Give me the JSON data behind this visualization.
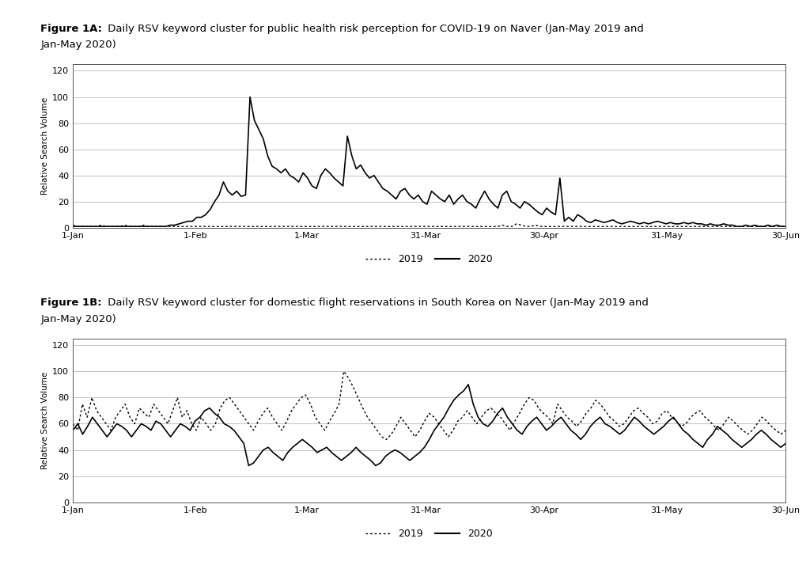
{
  "fig1a_title_bold": "Figure 1A:",
  "fig1a_title_rest": " Daily RSV keyword cluster for public health risk perception for COVID-19 on Naver (Jan-May 2019 and",
  "fig1a_title_line2": "Jan-May 2020)",
  "fig1b_title_bold": "Figure 1B:",
  "fig1b_title_rest": " Daily RSV keyword cluster for domestic flight reservations in South Korea on Naver (Jan-May 2019 and",
  "fig1b_title_line2": "Jan-May 2020)",
  "ylabel": "Relative Search Volume",
  "xtick_labels": [
    "1-Jan",
    "1-Feb",
    "1-Mar",
    "31-Mar",
    "30-Apr",
    "31-May",
    "30-Jun"
  ],
  "xtick_positions": [
    0,
    31,
    59,
    89,
    119,
    150,
    180
  ],
  "total_days": 181,
  "yticks": [
    0,
    20,
    40,
    60,
    80,
    100,
    120
  ],
  "ylim": [
    0,
    125
  ],
  "legend_2019": "2019",
  "legend_2020": "2020",
  "background_color": "#ffffff",
  "line_color": "#000000",
  "grid_color": "#aaaaaa",
  "fig1a_2019": [
    2,
    1,
    1,
    1,
    1,
    1,
    2,
    1,
    1,
    1,
    1,
    2,
    1,
    1,
    1,
    2,
    1,
    1,
    1,
    1,
    1,
    1,
    1,
    1,
    1,
    1,
    1,
    1,
    1,
    1,
    1,
    1,
    1,
    1,
    1,
    1,
    1,
    1,
    1,
    1,
    1,
    1,
    1,
    1,
    1,
    1,
    1,
    1,
    1,
    1,
    1,
    1,
    1,
    1,
    1,
    1,
    1,
    1,
    1,
    1,
    1,
    1,
    1,
    1,
    1,
    1,
    1,
    1,
    1,
    1,
    1,
    1,
    1,
    1,
    1,
    1,
    1,
    1,
    1,
    1,
    1,
    1,
    1,
    1,
    1,
    1,
    1,
    1,
    1,
    1,
    1,
    2,
    1,
    1,
    3,
    2,
    1,
    1,
    2,
    1,
    1,
    1,
    1,
    1,
    1,
    1,
    1,
    1,
    1,
    1,
    1,
    1,
    1,
    1,
    1,
    1,
    1,
    1,
    1,
    1,
    1,
    1,
    1,
    1,
    1,
    1,
    1,
    1,
    1,
    1,
    1,
    1,
    1,
    1,
    1,
    1,
    1,
    1,
    1,
    1,
    1,
    1,
    1,
    1,
    1,
    1,
    1,
    1,
    1,
    1,
    1,
    1
  ],
  "fig1a_2020": [
    1,
    1,
    1,
    1,
    1,
    1,
    1,
    1,
    1,
    1,
    1,
    1,
    1,
    1,
    1,
    1,
    1,
    1,
    1,
    1,
    1,
    1,
    2,
    2,
    3,
    4,
    5,
    5,
    8,
    8,
    10,
    14,
    20,
    25,
    35,
    28,
    25,
    28,
    24,
    25,
    100,
    82,
    75,
    68,
    55,
    47,
    45,
    42,
    45,
    40,
    38,
    35,
    42,
    38,
    32,
    30,
    40,
    45,
    42,
    38,
    35,
    32,
    70,
    55,
    45,
    48,
    42,
    38,
    40,
    35,
    30,
    28,
    25,
    22,
    28,
    30,
    25,
    22,
    25,
    20,
    18,
    28,
    25,
    22,
    20,
    25,
    18,
    22,
    25,
    20,
    18,
    15,
    22,
    28,
    22,
    18,
    15,
    25,
    28,
    20,
    18,
    15,
    20,
    18,
    15,
    12,
    10,
    15,
    12,
    10,
    38,
    5,
    8,
    5,
    10,
    8,
    5,
    4,
    6,
    5,
    4,
    5,
    6,
    4,
    3,
    4,
    5,
    4,
    3,
    4,
    3,
    4,
    5,
    4,
    3,
    4,
    3,
    3,
    4,
    3,
    4,
    3,
    3,
    2,
    3,
    2,
    2,
    3,
    2,
    2,
    1,
    1,
    2,
    1,
    2,
    1,
    1,
    2,
    1,
    2,
    1,
    1
  ],
  "fig1b_2019": [
    60,
    55,
    75,
    65,
    80,
    70,
    65,
    60,
    55,
    65,
    70,
    75,
    65,
    60,
    72,
    68,
    65,
    75,
    70,
    65,
    60,
    70,
    80,
    65,
    70,
    60,
    55,
    65,
    60,
    55,
    60,
    72,
    78,
    80,
    75,
    70,
    65,
    60,
    55,
    62,
    68,
    72,
    65,
    60,
    55,
    62,
    70,
    75,
    80,
    82,
    75,
    65,
    60,
    55,
    62,
    68,
    75,
    100,
    95,
    88,
    80,
    72,
    65,
    60,
    55,
    50,
    48,
    52,
    58,
    65,
    60,
    55,
    50,
    55,
    62,
    68,
    65,
    60,
    55,
    50,
    55,
    62,
    65,
    70,
    65,
    60,
    65,
    70,
    72,
    68,
    65,
    60,
    55,
    62,
    68,
    75,
    80,
    78,
    72,
    68,
    65,
    60,
    75,
    70,
    65,
    62,
    58,
    62,
    68,
    72,
    78,
    75,
    70,
    65,
    62,
    58,
    60,
    65,
    70,
    72,
    68,
    65,
    60,
    62,
    68,
    70,
    65,
    62,
    58,
    60,
    65,
    68,
    70,
    65,
    62,
    58,
    55,
    60,
    65,
    62,
    58,
    55,
    52,
    55,
    60,
    65,
    62,
    58,
    55,
    52,
    55
  ],
  "fig1b_2020": [
    55,
    60,
    52,
    58,
    65,
    60,
    55,
    50,
    55,
    60,
    58,
    55,
    50,
    55,
    60,
    58,
    55,
    62,
    60,
    55,
    50,
    55,
    60,
    58,
    55,
    62,
    65,
    70,
    72,
    68,
    65,
    60,
    58,
    55,
    50,
    45,
    28,
    30,
    35,
    40,
    42,
    38,
    35,
    32,
    38,
    42,
    45,
    48,
    45,
    42,
    38,
    40,
    42,
    38,
    35,
    32,
    35,
    38,
    42,
    38,
    35,
    32,
    28,
    30,
    35,
    38,
    40,
    38,
    35,
    32,
    35,
    38,
    42,
    48,
    55,
    60,
    65,
    72,
    78,
    82,
    85,
    90,
    75,
    65,
    60,
    58,
    62,
    68,
    72,
    65,
    60,
    55,
    52,
    58,
    62,
    65,
    60,
    55,
    58,
    62,
    65,
    60,
    55,
    52,
    48,
    52,
    58,
    62,
    65,
    60,
    58,
    55,
    52,
    55,
    60,
    65,
    62,
    58,
    55,
    52,
    55,
    58,
    62,
    65,
    60,
    55,
    52,
    48,
    45,
    42,
    48,
    52,
    58,
    55,
    52,
    48,
    45,
    42,
    45,
    48,
    52,
    55,
    52,
    48,
    45,
    42,
    45
  ]
}
